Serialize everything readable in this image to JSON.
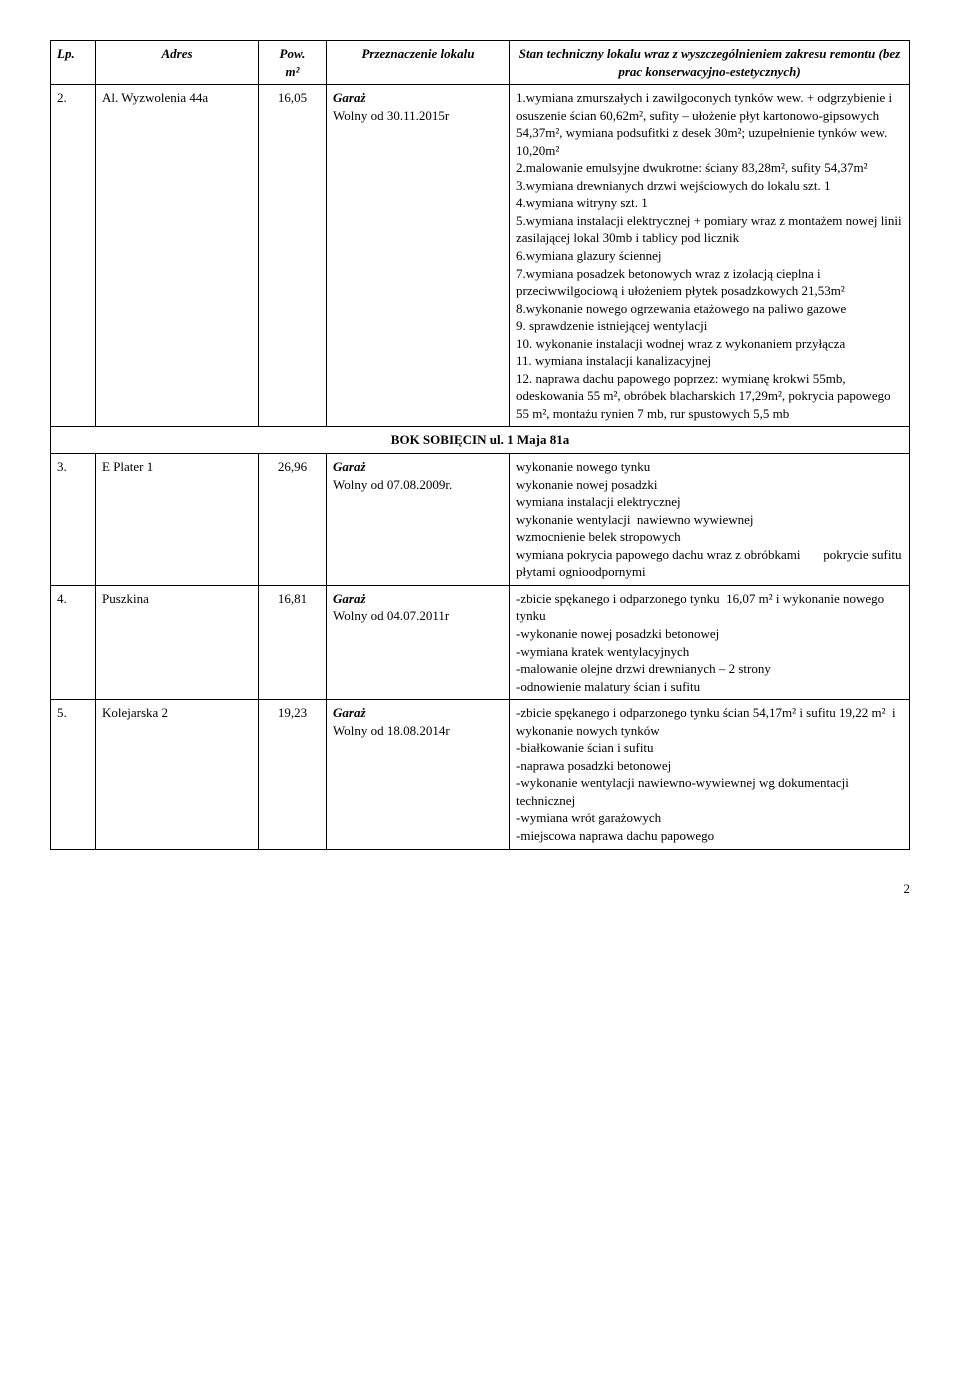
{
  "headers": {
    "lp": "Lp.",
    "adres": "Adres",
    "pow": "Pow.",
    "pow_unit": "m²",
    "przezn": "Przeznaczenie lokalu",
    "stan": "Stan techniczny lokalu wraz z wyszczególnieniem zakresu remontu (bez prac konserwacyjno-estetycznych)"
  },
  "rows": [
    {
      "lp": "2.",
      "adres": "Al. Wyzwolenia 44a",
      "pow": "16,05",
      "przezn_type": "Garaż",
      "przezn_wolny": "Wolny od 30.11.2015r",
      "stan": "1.wymiana zmurszałych i zawilgoconych tynków wew. + odgrzybienie i osuszenie ścian 60,62m², sufity – ułożenie płyt kartonowo-gipsowych 54,37m², wymiana podsufitki z desek 30m²; uzupełnienie tynków wew. 10,20m²\n2.malowanie emulsyjne dwukrotne: ściany 83,28m², sufity 54,37m²\n3.wymiana drewnianych drzwi wejściowych do lokalu szt. 1\n4.wymiana witryny szt. 1\n5.wymiana instalacji elektrycznej + pomiary wraz z montażem nowej linii zasilającej lokal 30mb i tablicy pod licznik\n6.wymiana glazury ściennej\n7.wymiana posadzek betonowych wraz z izolacją cieplna i przeciwwilgociową i ułożeniem płytek posadzkowych 21,53m²\n8.wykonanie nowego ogrzewania etażowego na paliwo gazowe\n9. sprawdzenie istniejącej wentylacji\n10. wykonanie instalacji wodnej wraz z wykonaniem przyłącza\n11. wymiana instalacji kanalizacyjnej\n12. naprawa dachu papowego poprzez: wymianę krokwi 55mb, odeskowania 55 m², obróbek blacharskich 17,29m², pokrycia papowego 55 m², montażu rynien 7 mb, rur spustowych 5,5 mb"
    }
  ],
  "section": "BOK SOBIĘCIN ul. 1 Maja 81a",
  "rows2": [
    {
      "lp": "3.",
      "adres": "E Plater 1",
      "pow": "26,96",
      "przezn_type": "Garaż",
      "przezn_wolny": "Wolny od 07.08.2009r.",
      "stan": "wykonanie nowego tynku\nwykonanie nowej posadzki\nwymiana instalacji elektrycznej\nwykonanie wentylacji  nawiewno wywiewnej\nwzmocnienie belek stropowych\nwymiana pokrycia papowego dachu wraz z obróbkami       pokrycie sufitu płytami ognioodpornymi"
    },
    {
      "lp": "4.",
      "adres": "Puszkina",
      "pow": "16,81",
      "przezn_type": "Garaż",
      "przezn_wolny": "Wolny od 04.07.2011r",
      "stan": "-zbicie spękanego i odparzonego tynku  16,07 m² i wykonanie nowego tynku\n-wykonanie nowej posadzki betonowej\n-wymiana kratek wentylacyjnych\n-malowanie olejne drzwi drewnianych – 2 strony\n-odnowienie malatury ścian i sufitu"
    },
    {
      "lp": "5.",
      "adres": "Kolejarska  2",
      "pow": "19,23",
      "przezn_type": "Garaż",
      "przezn_wolny": "Wolny od 18.08.2014r",
      "stan": "-zbicie spękanego i odparzonego tynku ścian 54,17m² i sufitu 19,22 m²  i wykonanie nowych tynków\n-białkowanie ścian i sufitu\n-naprawa posadzki betonowej\n-wykonanie wentylacji nawiewno-wywiewnej wg dokumentacji technicznej\n-wymiana wrót garażowych\n-miejscowa naprawa dachu papowego"
    }
  ],
  "page": "2"
}
